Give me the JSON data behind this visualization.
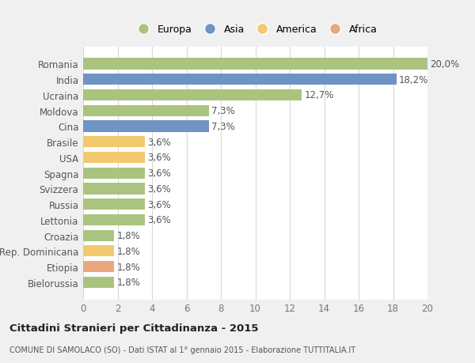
{
  "countries": [
    "Romania",
    "India",
    "Ucraina",
    "Moldova",
    "Cina",
    "Brasile",
    "USA",
    "Spagna",
    "Svizzera",
    "Russia",
    "Lettonia",
    "Croazia",
    "Rep. Dominicana",
    "Etiopia",
    "Bielorussia"
  ],
  "values": [
    20.0,
    18.2,
    12.7,
    7.3,
    7.3,
    3.6,
    3.6,
    3.6,
    3.6,
    3.6,
    3.6,
    1.8,
    1.8,
    1.8,
    1.8
  ],
  "labels": [
    "20,0%",
    "18,2%",
    "12,7%",
    "7,3%",
    "7,3%",
    "3,6%",
    "3,6%",
    "3,6%",
    "3,6%",
    "3,6%",
    "3,6%",
    "1,8%",
    "1,8%",
    "1,8%",
    "1,8%"
  ],
  "continents": [
    "Europa",
    "Asia",
    "Europa",
    "Europa",
    "Asia",
    "America",
    "America",
    "Europa",
    "Europa",
    "Europa",
    "Europa",
    "Europa",
    "America",
    "Africa",
    "Europa"
  ],
  "colors": {
    "Europa": "#aac47f",
    "Asia": "#6f93c4",
    "America": "#f2c96e",
    "Africa": "#e8a87c"
  },
  "legend_order": [
    "Europa",
    "Asia",
    "America",
    "Africa"
  ],
  "title": "Cittadini Stranieri per Cittadinanza - 2015",
  "subtitle": "COMUNE DI SAMOLACO (SO) - Dati ISTAT al 1° gennaio 2015 - Elaborazione TUTTITALIA.IT",
  "xlim": [
    0,
    20
  ],
  "xticks": [
    0,
    2,
    4,
    6,
    8,
    10,
    12,
    14,
    16,
    18,
    20
  ],
  "plot_bg": "#ffffff",
  "fig_bg": "#f0f0f0",
  "grid_color": "#d8d8d8",
  "bar_height": 0.72,
  "label_fontsize": 8.5,
  "tick_fontsize": 8.5
}
